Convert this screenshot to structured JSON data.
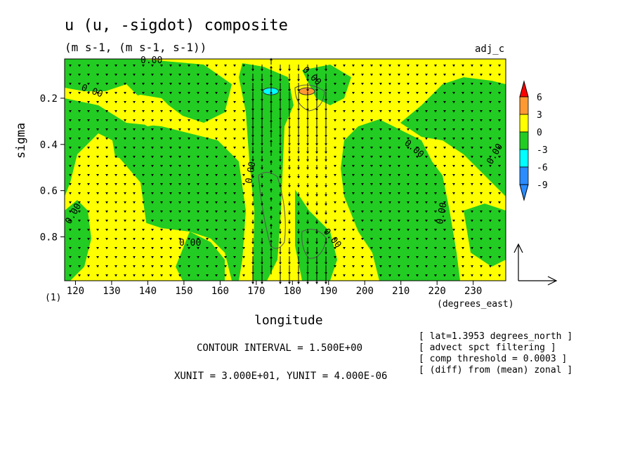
{
  "title": "u (u, -sigdot) composite",
  "subtitle": "(m s-1, (m s-1, s-1))",
  "corner_label": "adj_c",
  "x_axis_label": "longitude",
  "x_axis_units": "(degrees_east)",
  "y_axis_label": "sigma",
  "lower_left_tick": "(1)",
  "contour_interval": "CONTOUR INTERVAL = 1.500E+00",
  "vector_units": "XUNIT = 3.000E+01, YUNIT = 4.000E-06",
  "notes": [
    "[ lat=1.3953 degrees_north ]",
    "[ advect spct filtering ]",
    "[ comp threshold = 0.0003 ]",
    "[ (diff) from (mean) zonal ]"
  ],
  "contour_labels": [
    "0.00",
    "0.00",
    "0.00",
    "0.00",
    "0.00",
    "0.00",
    "0.00",
    "0.00",
    "0.00",
    "0.00"
  ],
  "colors": {
    "yellow": "#ffff00",
    "green": "#22cc22",
    "cyan": "#00ffff",
    "blue": "#2a8cff",
    "orange": "#ff9a33",
    "red": "#ff0000"
  },
  "chart_data": {
    "type": "heatmap",
    "xlabel": "longitude",
    "ylabel": "sigma",
    "x_ticks": [
      120,
      130,
      140,
      150,
      160,
      170,
      180,
      190,
      200,
      210,
      220,
      230
    ],
    "y_ticks": [
      0.2,
      0.4,
      0.6,
      0.8
    ],
    "xlim": [
      117,
      239
    ],
    "ylim": [
      0.03,
      0.99
    ],
    "y_inverted": true,
    "colorbar": {
      "levels": [
        6,
        3,
        0,
        -3,
        -6,
        -9
      ],
      "labels": [
        "6",
        "3",
        "0",
        "-3",
        "-6",
        "-9"
      ]
    },
    "contour_interval": 1.5,
    "fill_regions": [
      {
        "level": "negative",
        "color": "green",
        "lon": [
          117,
          145
        ],
        "sigma": [
          0.03,
          0.12
        ]
      },
      {
        "level": "positive",
        "color": "yellow",
        "lon": [
          117,
          135
        ],
        "sigma": [
          0.12,
          0.25
        ]
      },
      {
        "level": "negative",
        "color": "green",
        "lon": [
          117,
          170
        ],
        "sigma": [
          0.25,
          0.6
        ]
      },
      {
        "level": "positive",
        "color": "yellow",
        "lon": [
          122,
          165
        ],
        "sigma": [
          0.35,
          0.85
        ]
      },
      {
        "level": "negative",
        "color": "green",
        "lon": [
          168,
          180
        ],
        "sigma": [
          0.05,
          0.99
        ]
      },
      {
        "level": "positive",
        "color": "yellow",
        "lon": [
          176,
          206
        ],
        "sigma": [
          0.15,
          0.99
        ]
      },
      {
        "level": "negative",
        "color": "green",
        "lon": [
          182,
          190
        ],
        "sigma": [
          0.55,
          0.99
        ]
      },
      {
        "level": "negative",
        "color": "green",
        "lon": [
          198,
          239
        ],
        "sigma": [
          0.3,
          0.99
        ]
      },
      {
        "level": "positive",
        "color": "yellow",
        "lon": [
          220,
          239
        ],
        "sigma": [
          0.03,
          0.99
        ]
      }
    ],
    "extrema": [
      {
        "lon": 174,
        "sigma": 0.17,
        "sign": "negative",
        "color": "cyan"
      },
      {
        "lon": 184,
        "sigma": 0.17,
        "sign": "positive",
        "color": "orange"
      }
    ],
    "vectors": {
      "component_x": "u",
      "component_y": "-sigdot",
      "reference_x": 30.0,
      "reference_y": 4e-06
    }
  }
}
